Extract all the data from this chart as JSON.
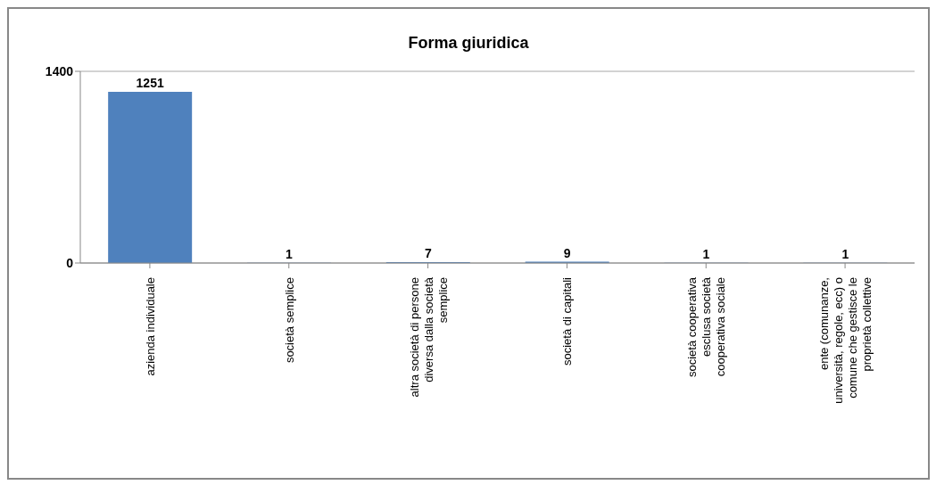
{
  "chart_data": {
    "type": "bar",
    "title": "Forma giuridica",
    "categories": [
      "azienda individuale",
      "società semplice",
      "altra società di persone diversa dalla società semplice",
      "società di capitali",
      "società cooperativa esclusa società cooperativa sociale",
      "ente (comunanze, università, regole, ecc) o comune che gestisce le proprietà collettive"
    ],
    "values": [
      1251,
      1,
      7,
      9,
      1,
      1
    ],
    "color": "#4f81bd",
    "ylim": [
      0,
      1400
    ],
    "yticks": [
      0,
      1400
    ],
    "grid": "y",
    "data_labels": true
  }
}
